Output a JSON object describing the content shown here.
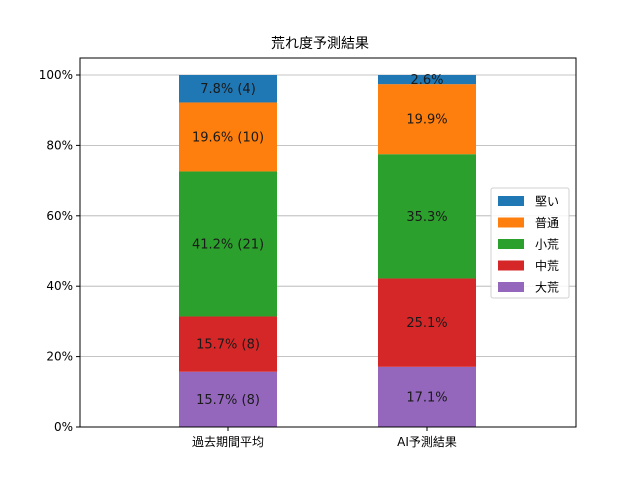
{
  "chart_data": {
    "type": "bar",
    "stacked": true,
    "title": "荒れ度予測結果",
    "categories": [
      "過去期間平均",
      "AI予測結果"
    ],
    "ylim": [
      0,
      100
    ],
    "yticks": [
      "0%",
      "20%",
      "40%",
      "60%",
      "80%",
      "100%"
    ],
    "grid": "horizontal",
    "legend_position": "right",
    "series": [
      {
        "name": "大荒",
        "color": "#9467bd",
        "values": [
          15.7,
          17.1
        ],
        "labels": [
          "15.7% (8)",
          "17.1%"
        ]
      },
      {
        "name": "中荒",
        "color": "#d62728",
        "values": [
          15.7,
          25.1
        ],
        "labels": [
          "15.7% (8)",
          "25.1%"
        ]
      },
      {
        "name": "小荒",
        "color": "#2ca02c",
        "values": [
          41.2,
          35.3
        ],
        "labels": [
          "41.2% (21)",
          "35.3%"
        ]
      },
      {
        "name": "普通",
        "color": "#ff7f0e",
        "values": [
          19.6,
          19.9
        ],
        "labels": [
          "19.6% (10)",
          "19.9%"
        ]
      },
      {
        "name": "堅い",
        "color": "#1f77b4",
        "values": [
          7.8,
          2.6
        ],
        "labels": [
          "7.8% (4)",
          "2.6%"
        ]
      }
    ],
    "legend_order": [
      "堅い",
      "普通",
      "小荒",
      "中荒",
      "大荒"
    ]
  }
}
